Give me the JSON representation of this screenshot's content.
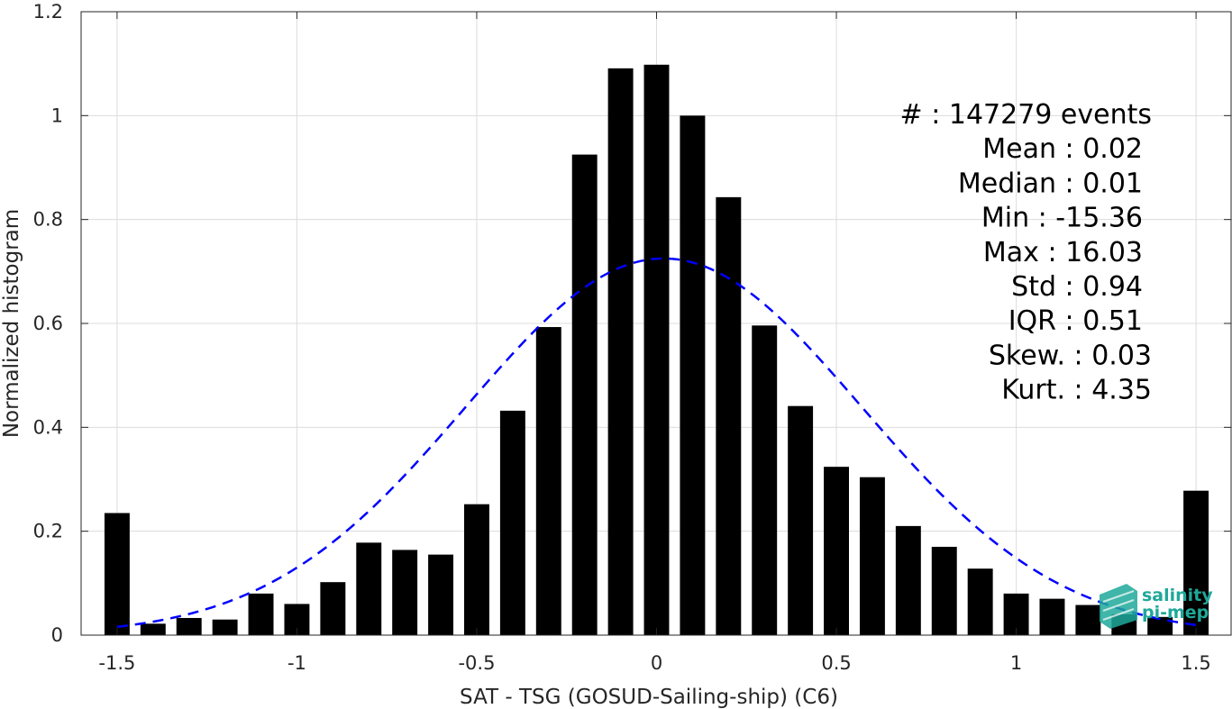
{
  "chart_data": {
    "type": "bar",
    "xlabel": "SAT - TSG (GOSUD-Sailing-ship) (C6)",
    "ylabel": "Normalized histogram",
    "xlim": [
      -1.6,
      1.6
    ],
    "ylim": [
      0,
      1.2
    ],
    "xticks": [
      -1.5,
      -1,
      -0.5,
      0,
      0.5,
      1,
      1.5
    ],
    "xtick_labels": [
      "-1.5",
      "-1",
      "-0.5",
      "0",
      "0.5",
      "1",
      "1.5"
    ],
    "yticks": [
      0,
      0.2,
      0.4,
      0.6,
      0.8,
      1,
      1.2
    ],
    "ytick_labels": [
      "0",
      "0.2",
      "0.4",
      "0.6",
      "0.8",
      "1",
      "1.2"
    ],
    "grid": true,
    "bar_color": "#000000",
    "bar_width": 0.07,
    "x": [
      -1.5,
      -1.4,
      -1.3,
      -1.2,
      -1.1,
      -1.0,
      -0.9,
      -0.8,
      -0.7,
      -0.6,
      -0.5,
      -0.4,
      -0.3,
      -0.2,
      -0.1,
      0.0,
      0.1,
      0.2,
      0.3,
      0.4,
      0.5,
      0.6,
      0.7,
      0.8,
      0.9,
      1.0,
      1.1,
      1.2,
      1.3,
      1.4,
      1.5
    ],
    "values": [
      0.235,
      0.022,
      0.033,
      0.03,
      0.08,
      0.06,
      0.102,
      0.178,
      0.164,
      0.155,
      0.252,
      0.432,
      0.593,
      0.925,
      1.091,
      1.098,
      1.0,
      0.843,
      0.596,
      0.441,
      0.324,
      0.304,
      0.21,
      0.17,
      0.128,
      0.08,
      0.07,
      0.058,
      0.04,
      0.035,
      0.278
    ],
    "fit_curve": {
      "type": "gaussian",
      "mean": 0.02,
      "std": 0.55,
      "peak": 0.725,
      "x_range": [
        -1.5,
        1.5
      ],
      "color": "#0000ff",
      "style": "dashed"
    },
    "annotations": [
      "#  : 147279 events",
      "Mean : 0.02",
      "Median : 0.01",
      "Min : -15.36",
      "Max : 16.03",
      "Std : 0.94",
      "IQR : 0.51",
      "Skew. : 0.03",
      "Kurt. : 4.35"
    ],
    "annotation_placement": "top-right"
  },
  "logo": {
    "line1": "salinity",
    "line2": "pi-mep",
    "color": "#1fa89a"
  }
}
